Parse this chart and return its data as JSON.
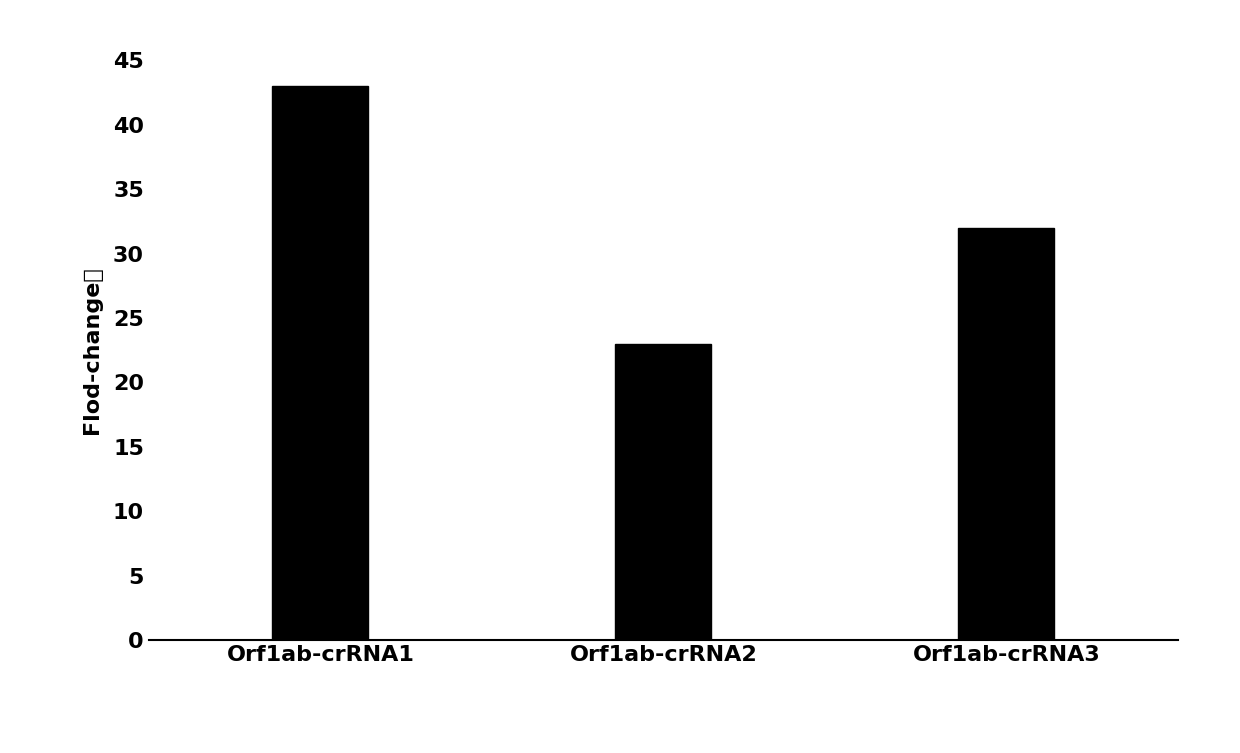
{
  "categories": [
    "Orf1ab-crRNA1",
    "Orf1ab-crRNA2",
    "Orf1ab-crRNA3"
  ],
  "values": [
    43,
    23,
    32
  ],
  "bar_color": "#000000",
  "ylabel": "Flod-change値",
  "ylim": [
    0,
    45
  ],
  "yticks": [
    0,
    5,
    10,
    15,
    20,
    25,
    30,
    35,
    40,
    45
  ],
  "bar_width": 0.28,
  "background_color": "#ffffff",
  "tick_fontsize": 16,
  "label_fontsize": 16,
  "tick_fontweight": "bold",
  "label_fontweight": "bold"
}
